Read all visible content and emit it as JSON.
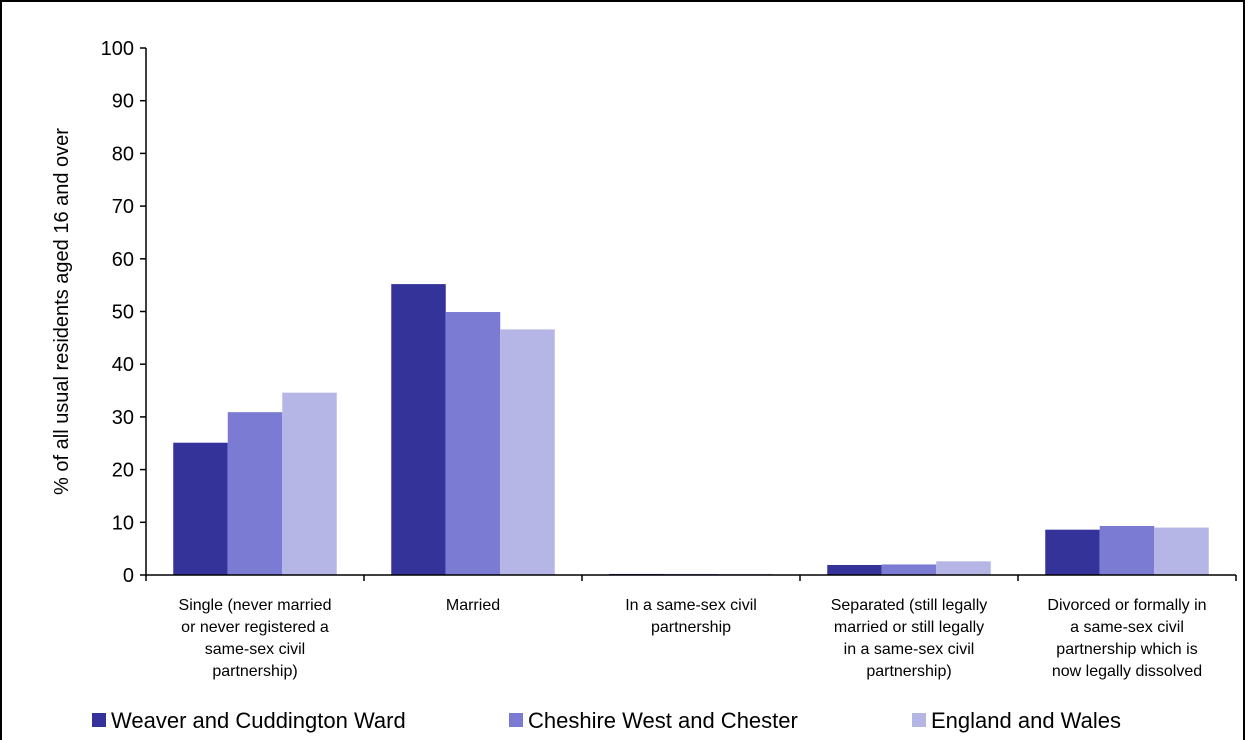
{
  "chart_data": {
    "type": "bar",
    "title": "",
    "ylabel": "% of all usual residents aged 16 and over",
    "xlabel": "",
    "ylim": [
      0,
      100
    ],
    "yticks": [
      0,
      10,
      20,
      30,
      40,
      50,
      60,
      70,
      80,
      90,
      100
    ],
    "grid": false,
    "legend_position": "bottom",
    "categories": [
      [
        "Single (never married",
        "or never registered a",
        "same-sex civil",
        "partnership)"
      ],
      [
        "Married"
      ],
      [
        "In a same-sex civil",
        "partnership"
      ],
      [
        "Separated (still legally",
        "married or still legally",
        "in a same-sex civil",
        "partnership)"
      ],
      [
        "Divorced or formally in",
        "a same-sex civil",
        "partnership which is",
        "now legally dissolved"
      ]
    ],
    "series": [
      {
        "name": "Weaver and Cuddington Ward",
        "color": "#333399",
        "values": [
          25.1,
          55.2,
          0.2,
          1.9,
          8.6
        ]
      },
      {
        "name": "Cheshire West and Chester",
        "color": "#7B7BD3",
        "values": [
          30.9,
          49.9,
          0.2,
          2.0,
          9.3
        ]
      },
      {
        "name": "England and Wales",
        "color": "#B6B6E6",
        "values": [
          34.6,
          46.6,
          0.2,
          2.6,
          9.0
        ]
      }
    ]
  }
}
